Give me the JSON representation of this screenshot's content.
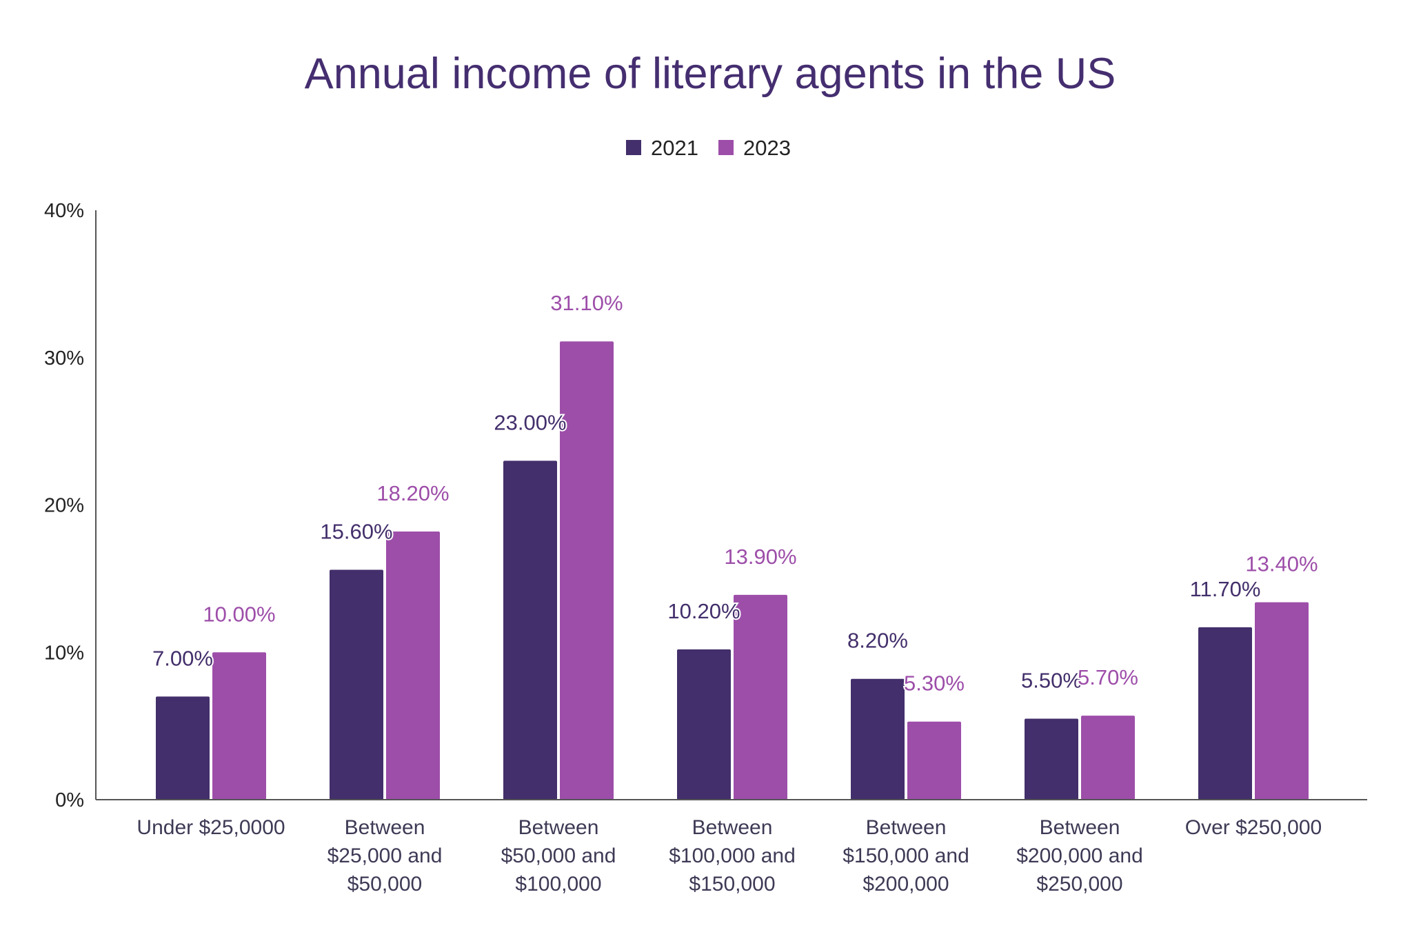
{
  "chart_data": {
    "type": "bar",
    "title": "Annual income of literary agents in the US",
    "xlabel": "",
    "ylabel": "",
    "ylim": [
      0,
      40
    ],
    "yticks": [
      0,
      10,
      20,
      30,
      40
    ],
    "ytick_labels": [
      "0%",
      "10%",
      "20%",
      "30%",
      "40%"
    ],
    "grid": false,
    "legend_position": "top-center",
    "categories": [
      [
        "Under $25,0000"
      ],
      [
        "Between",
        "$25,000 and",
        "$50,000"
      ],
      [
        "Between",
        "$50,000 and",
        "$100,000"
      ],
      [
        "Between",
        "$100,000 and",
        "$150,000"
      ],
      [
        "Between",
        "$150,000 and",
        "$200,000"
      ],
      [
        "Between",
        "$200,000 and",
        "$250,000"
      ],
      [
        "Over $250,000"
      ]
    ],
    "series": [
      {
        "name": "2021",
        "color": "#432f6b",
        "values": [
          7.0,
          15.6,
          23.0,
          10.2,
          8.2,
          5.5,
          11.7
        ],
        "labels": [
          "7.00%",
          "15.60%",
          "23.00%",
          "10.20%",
          "8.20%",
          "5.50%",
          "11.70%"
        ]
      },
      {
        "name": "2023",
        "color": "#9d4ea9",
        "values": [
          10.0,
          18.2,
          31.1,
          13.9,
          5.3,
          5.7,
          13.4
        ],
        "labels": [
          "10.00%",
          "18.20%",
          "31.10%",
          "13.90%",
          "5.30%",
          "5.70%",
          "13.40%"
        ]
      }
    ],
    "colors": {
      "title": "#452e70",
      "axis": "#555555",
      "tick_text": "#222222",
      "category_text": "#3d3a55"
    }
  }
}
